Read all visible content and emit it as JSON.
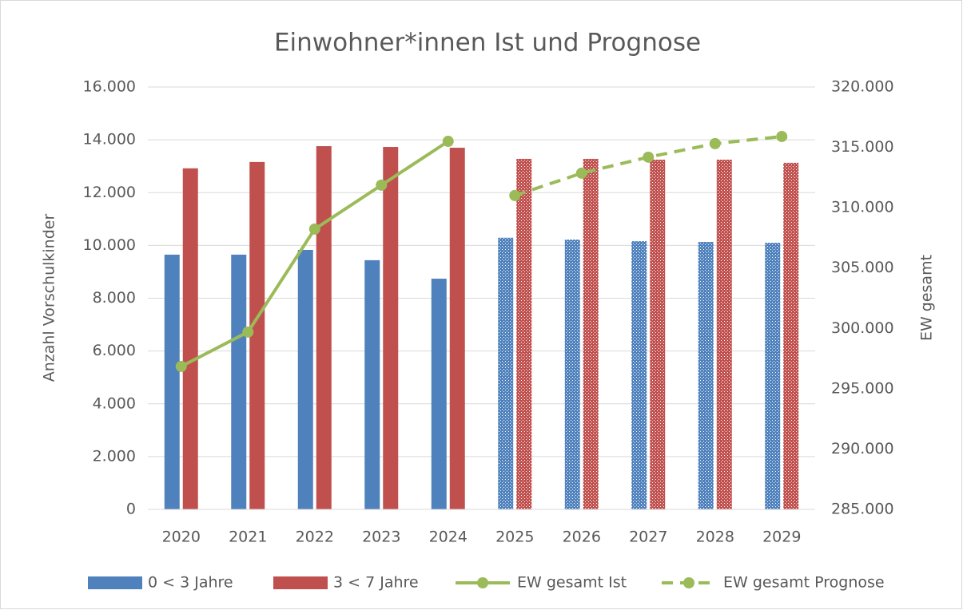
{
  "chart_data": {
    "type": "bar",
    "title": "Einwohner*innen Ist und Prognose",
    "ylabel": "Anzahl Vorschulkinder",
    "y2label": "EW gesamt",
    "categories": [
      "2020",
      "2021",
      "2022",
      "2023",
      "2024",
      "2025",
      "2026",
      "2027",
      "2028",
      "2029"
    ],
    "ylim": [
      0,
      16000
    ],
    "yticks": [
      0,
      {
        "value": 2000,
        "label": "2.000"
      },
      {
        "value": 4000,
        "label": "4.000"
      },
      {
        "value": 6000,
        "label": "6.000"
      },
      {
        "value": 8000,
        "label": "8.000"
      },
      {
        "value": 10000,
        "label": "10.000"
      },
      {
        "value": 12000,
        "label": "12.000"
      },
      {
        "value": 14000,
        "label": "14.000"
      },
      {
        "value": 16000,
        "label": "16.000"
      }
    ],
    "y2lim": [
      285000,
      320000
    ],
    "y2ticks": [
      {
        "value": 285000,
        "label": "285.000"
      },
      {
        "value": 290000,
        "label": "290.000"
      },
      {
        "value": 295000,
        "label": "295.000"
      },
      {
        "value": 300000,
        "label": "300.000"
      },
      {
        "value": 305000,
        "label": "305.000"
      },
      {
        "value": 310000,
        "label": "310.000"
      },
      {
        "value": 315000,
        "label": "315.000"
      },
      {
        "value": 320000,
        "label": "320.000"
      }
    ],
    "grid": true,
    "legend": "bottom",
    "series": [
      {
        "name": "0 < 3 Jahre",
        "type": "bar",
        "color": "#4f81bd",
        "values": [
          9650,
          9650,
          9830,
          9440,
          8740,
          10290,
          10220,
          10160,
          10130,
          10100
        ],
        "patterned": [
          false,
          false,
          false,
          false,
          false,
          true,
          true,
          true,
          true,
          true
        ]
      },
      {
        "name": "3 < 7 Jahre",
        "type": "bar",
        "color": "#c0504d",
        "values": [
          12920,
          13160,
          13760,
          13730,
          13700,
          13280,
          13280,
          13250,
          13250,
          13130
        ],
        "patterned": [
          false,
          false,
          false,
          false,
          false,
          true,
          true,
          true,
          true,
          true
        ]
      },
      {
        "name": "EW gesamt Ist",
        "type": "line",
        "axis": "y2",
        "color": "#9bbb59",
        "dashed": false,
        "values": [
          296850,
          299700,
          308230,
          311870,
          315500,
          null,
          null,
          null,
          null,
          null
        ]
      },
      {
        "name": "EW gesamt Prognose",
        "type": "line",
        "axis": "y2",
        "color": "#9bbb59",
        "dashed": true,
        "values": [
          null,
          null,
          null,
          null,
          null,
          311010,
          312860,
          314190,
          315310,
          315900
        ]
      }
    ]
  }
}
